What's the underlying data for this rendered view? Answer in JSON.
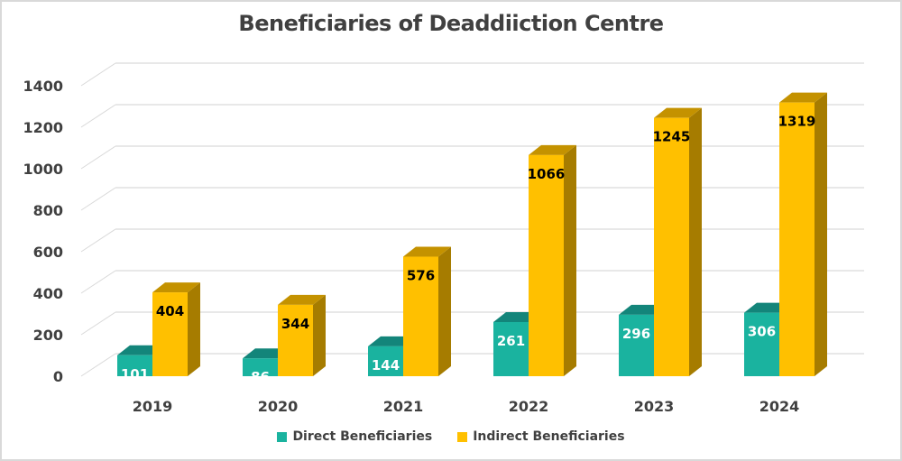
{
  "chart_data": {
    "type": "bar",
    "style": "3d-clustered-column",
    "title": "Beneficiaries of Deaddiiction Centre",
    "xlabel": "",
    "ylabel": "",
    "categories": [
      "2019",
      "2020",
      "2021",
      "2022",
      "2023",
      "2024"
    ],
    "series": [
      {
        "name": "Direct Beneficiaries",
        "color": "#1ab39f",
        "top_color": "#13857a",
        "side_color": "#0f6e63",
        "label_color": "#ffffff",
        "values": [
          101,
          86,
          144,
          261,
          296,
          306
        ]
      },
      {
        "name": "Indirect Beneficiaries",
        "color": "#ffc000",
        "top_color": "#c49200",
        "side_color": "#a67c00",
        "label_color": "#000000",
        "values": [
          404,
          344,
          576,
          1066,
          1245,
          1319
        ]
      }
    ],
    "ylim": [
      0,
      1400
    ],
    "yticks": [
      0,
      200,
      400,
      600,
      800,
      1000,
      1200,
      1400
    ],
    "grid": true,
    "legend": "bottom-center",
    "data_labels": true
  }
}
